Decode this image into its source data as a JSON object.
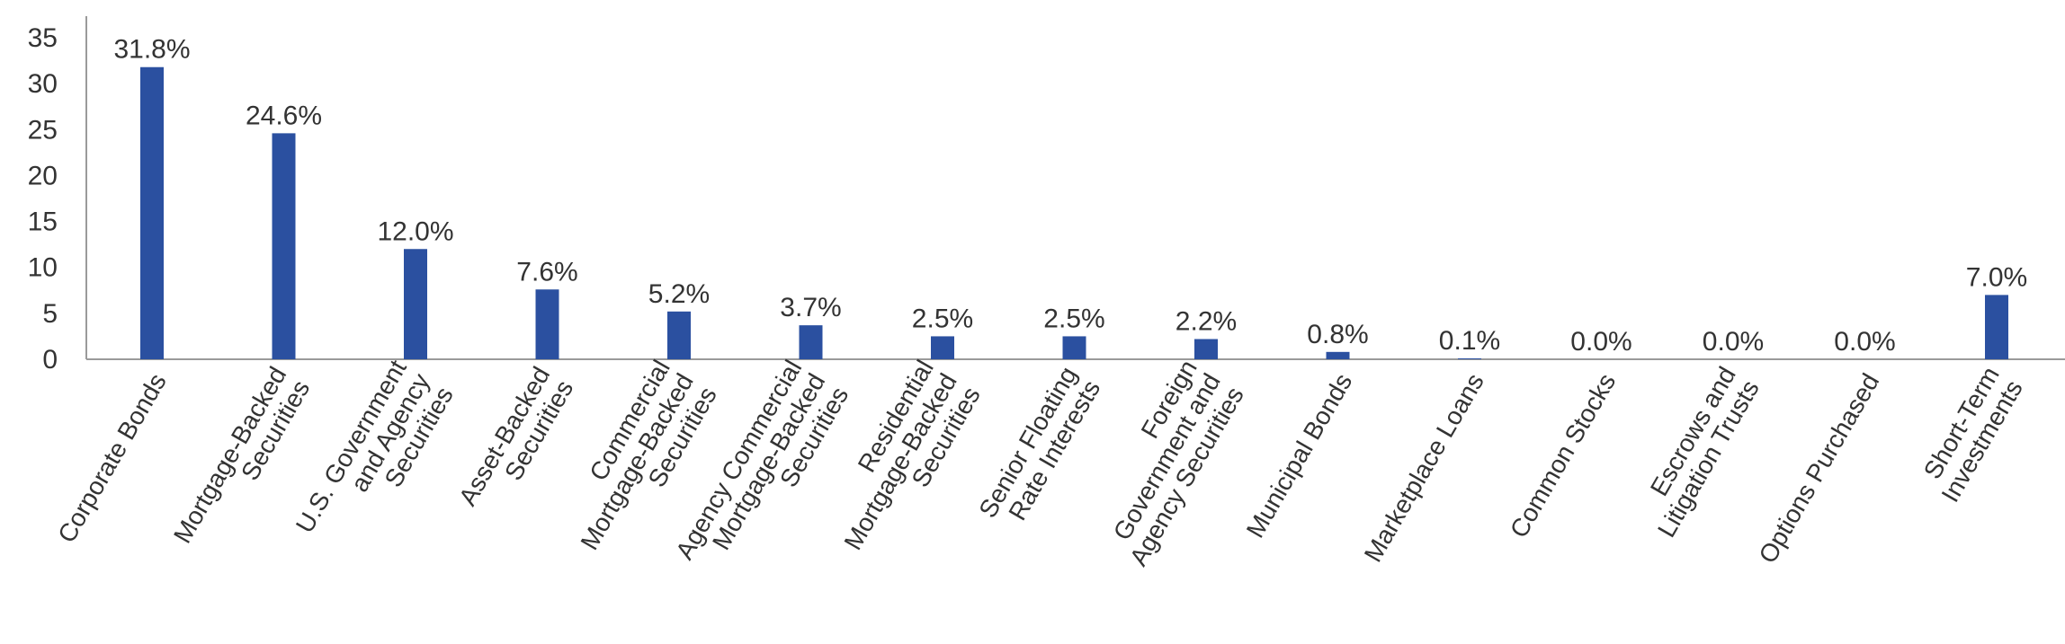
{
  "chart_data": {
    "type": "bar",
    "title": "",
    "xlabel": "",
    "ylabel": "",
    "ylim": [
      0,
      35
    ],
    "yticks": [
      0,
      5,
      10,
      15,
      20,
      25,
      30,
      35
    ],
    "grid": false,
    "legend": "none",
    "bar_color": "#2B50A0",
    "categories": [
      [
        "Corporate Bonds"
      ],
      [
        "Mortgage-Backed",
        "Securities"
      ],
      [
        "U.S. Government",
        "and Agency",
        "Securities"
      ],
      [
        "Asset-Backed",
        "Securities"
      ],
      [
        "Commercial",
        "Mortgage-Backed",
        "Securities"
      ],
      [
        "Agency Commercial",
        "Mortgage-Backed",
        "Securities"
      ],
      [
        "Residential",
        "Mortgage-Backed",
        "Securities"
      ],
      [
        "Senior Floating",
        "Rate Interests"
      ],
      [
        "Foreign",
        "Government and",
        "Agency Securities"
      ],
      [
        "Municipal Bonds"
      ],
      [
        "Marketplace Loans"
      ],
      [
        "Common Stocks"
      ],
      [
        "Escrows and",
        "Litigation Trusts"
      ],
      [
        "Options Purchased"
      ],
      [
        "Short-Term",
        "Investments"
      ]
    ],
    "values": [
      31.8,
      24.6,
      12.0,
      7.6,
      5.2,
      3.7,
      2.5,
      2.5,
      2.2,
      0.8,
      0.1,
      0.0,
      0.0,
      0.0,
      7.0
    ],
    "data_labels": [
      "31.8%",
      "24.6%",
      "12.0%",
      "7.6%",
      "5.2%",
      "3.7%",
      "2.5%",
      "2.5%",
      "2.2%",
      "0.8%",
      "0.1%",
      "0.0%",
      "0.0%",
      "0.0%",
      "7.0%"
    ]
  }
}
